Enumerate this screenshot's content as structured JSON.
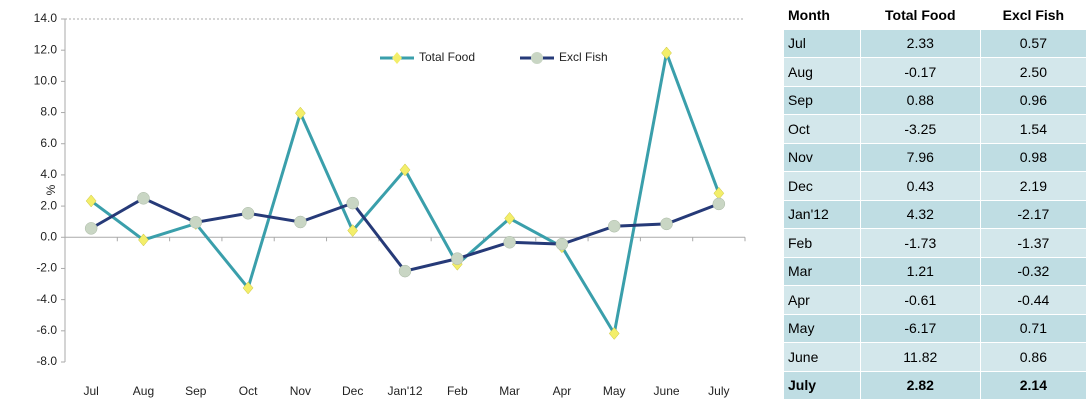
{
  "chart_data": {
    "type": "line",
    "y_label": "%",
    "categories": [
      "Jul",
      "Aug",
      "Sep",
      "Oct",
      "Nov",
      "Dec",
      "Jan'12",
      "Feb",
      "Mar",
      "Apr",
      "May",
      "June",
      "July"
    ],
    "series": [
      {
        "name": "Total Food",
        "color": "#3a9fab",
        "marker_color": "#f3ee6a",
        "values": [
          2.33,
          -0.17,
          0.88,
          -3.25,
          7.96,
          0.43,
          4.32,
          -1.73,
          1.21,
          -0.61,
          -6.17,
          11.82,
          2.82
        ]
      },
      {
        "name": "Excl Fish",
        "color": "#263a78",
        "marker_color": "#c9d6c4",
        "values": [
          0.57,
          2.5,
          0.96,
          1.54,
          0.98,
          2.19,
          -2.17,
          -1.37,
          -0.32,
          -0.44,
          0.71,
          0.86,
          2.14
        ]
      }
    ],
    "ylim": [
      -8,
      14
    ],
    "yticks": [
      {
        "value": -8,
        "label": "-8.0"
      },
      {
        "value": -6,
        "label": "-6.0"
      },
      {
        "value": -4,
        "label": "-4.0"
      },
      {
        "value": -2,
        "label": "-2.0"
      },
      {
        "value": 0,
        "label": "0.0"
      },
      {
        "value": 2,
        "label": "2.0"
      },
      {
        "value": 4,
        "label": "4.0"
      },
      {
        "value": 6,
        "label": "6.0"
      },
      {
        "value": 8,
        "label": "8.0"
      },
      {
        "value": 10,
        "label": "10.0"
      },
      {
        "value": 12,
        "label": "12.0"
      },
      {
        "value": 14,
        "label": "14.0"
      }
    ],
    "legend": "top"
  },
  "table": {
    "headers": [
      "Month",
      "Total Food",
      "Excl Fish"
    ],
    "rows": [
      [
        "Jul",
        "2.33",
        "0.57"
      ],
      [
        "Aug",
        "-0.17",
        "2.50"
      ],
      [
        "Sep",
        "0.88",
        "0.96"
      ],
      [
        "Oct",
        "-3.25",
        "1.54"
      ],
      [
        "Nov",
        "7.96",
        "0.98"
      ],
      [
        "Dec",
        "0.43",
        "2.19"
      ],
      [
        "Jan'12",
        "4.32",
        "-2.17"
      ],
      [
        "Feb",
        "-1.73",
        "-1.37"
      ],
      [
        "Mar",
        "1.21",
        "-0.32"
      ],
      [
        "Apr",
        "-0.61",
        "-0.44"
      ],
      [
        "May",
        "-6.17",
        "0.71"
      ],
      [
        "June",
        "11.82",
        "0.86"
      ],
      [
        "July",
        "2.82",
        "2.14"
      ]
    ]
  }
}
